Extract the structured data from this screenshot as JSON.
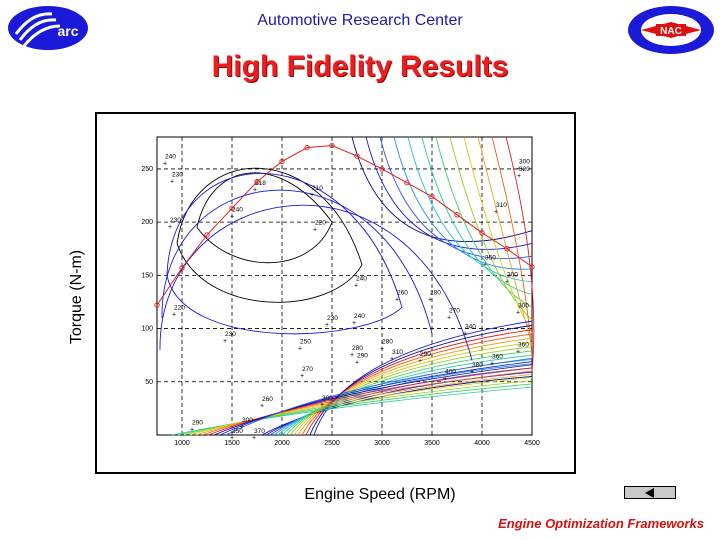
{
  "header": {
    "org": "Automotive Research Center",
    "title": "High Fidelity Results",
    "left_logo_text": "arc",
    "right_logo_text": "NAC"
  },
  "footer": {
    "text": "Engine Optimization Frameworks"
  },
  "colors": {
    "org": "#1b1bb0",
    "title": "#ee1c1c",
    "footer": "#d81010",
    "logo_blue": "#1a1ad8",
    "curve": "#e02020"
  },
  "chart_data": {
    "type": "line",
    "title": "",
    "xlabel": "Engine Speed (RPM)",
    "ylabel": "Torque (N-m)",
    "xlim": [
      750,
      4500
    ],
    "ylim": [
      0,
      280
    ],
    "grid": true,
    "x_ticks": [
      1000,
      1500,
      2000,
      2500,
      3000,
      3500,
      4000,
      4500
    ],
    "y_ticks": [
      50,
      100,
      150,
      200,
      250
    ],
    "series": [
      {
        "color": "#e02020",
        "markers": "circle",
        "x": [
          750,
          1000,
          1250,
          1500,
          1750,
          2000,
          2250,
          2500,
          2750,
          3000,
          3250,
          3500,
          3750,
          4000,
          4250,
          4500
        ],
        "y": [
          122,
          157,
          188,
          213,
          238,
          257,
          270,
          272,
          262,
          250,
          237,
          224,
          207,
          190,
          175,
          158
        ]
      }
    ],
    "contour_labels": [
      {
        "x": 830,
        "y": 260,
        "text": "240"
      },
      {
        "x": 900,
        "y": 243,
        "text": "230"
      },
      {
        "x": 880,
        "y": 200,
        "text": "230"
      },
      {
        "x": 1500,
        "y": 210,
        "text": "240"
      },
      {
        "x": 1730,
        "y": 235,
        "text": "218"
      },
      {
        "x": 2300,
        "y": 230,
        "text": "210"
      },
      {
        "x": 2330,
        "y": 198,
        "text": "220"
      },
      {
        "x": 2740,
        "y": 145,
        "text": "240"
      },
      {
        "x": 3150,
        "y": 132,
        "text": "260"
      },
      {
        "x": 3480,
        "y": 132,
        "text": "280"
      },
      {
        "x": 3670,
        "y": 115,
        "text": "270"
      },
      {
        "x": 3830,
        "y": 100,
        "text": "340"
      },
      {
        "x": 4140,
        "y": 214,
        "text": "310"
      },
      {
        "x": 4370,
        "y": 255,
        "text": "300"
      },
      {
        "x": 4370,
        "y": 248,
        "text": "320"
      },
      {
        "x": 4030,
        "y": 165,
        "text": "350"
      },
      {
        "x": 4250,
        "y": 149,
        "text": "300"
      },
      {
        "x": 4360,
        "y": 120,
        "text": "300"
      },
      {
        "x": 4360,
        "y": 83,
        "text": "360"
      },
      {
        "x": 4100,
        "y": 72,
        "text": "360"
      },
      {
        "x": 3900,
        "y": 64,
        "text": "380"
      },
      {
        "x": 3630,
        "y": 58,
        "text": "400"
      },
      {
        "x": 3380,
        "y": 74,
        "text": "290"
      },
      {
        "x": 3100,
        "y": 76,
        "text": "310"
      },
      {
        "x": 3000,
        "y": 86,
        "text": "280"
      },
      {
        "x": 2720,
        "y": 110,
        "text": "240"
      },
      {
        "x": 2450,
        "y": 108,
        "text": "230"
      },
      {
        "x": 2180,
        "y": 86,
        "text": "250"
      },
      {
        "x": 2200,
        "y": 60,
        "text": "270"
      },
      {
        "x": 2700,
        "y": 80,
        "text": "280"
      },
      {
        "x": 2750,
        "y": 73,
        "text": "290"
      },
      {
        "x": 1430,
        "y": 93,
        "text": "230"
      },
      {
        "x": 920,
        "y": 118,
        "text": "220"
      },
      {
        "x": 1800,
        "y": 32,
        "text": "260"
      },
      {
        "x": 2400,
        "y": 33,
        "text": "300"
      },
      {
        "x": 1100,
        "y": 10,
        "text": "290"
      },
      {
        "x": 1600,
        "y": 12,
        "text": "300"
      },
      {
        "x": 1500,
        "y": 2,
        "text": "350"
      },
      {
        "x": 1720,
        "y": 2,
        "text": "370"
      }
    ]
  }
}
